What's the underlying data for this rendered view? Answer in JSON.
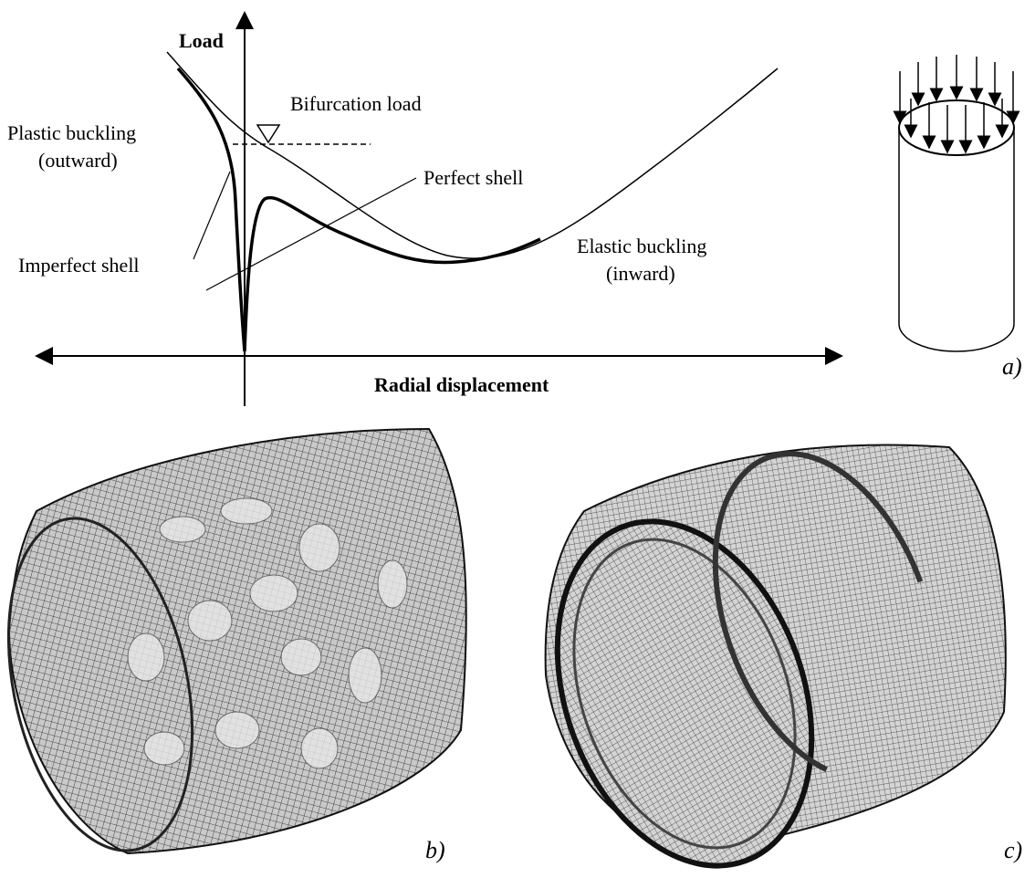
{
  "graph": {
    "y_axis_label": "Load",
    "x_axis_label": "Radial displacement",
    "bifurcation": "Bifurcation load",
    "plastic": [
      "Plastic buckling",
      "(outward)"
    ],
    "elastic": [
      "Elastic buckling",
      "(inward)"
    ],
    "perfect": "Perfect shell",
    "imperfect": "Imperfect shell"
  },
  "panel_labels": [
    "a)",
    "b)",
    "c)"
  ]
}
